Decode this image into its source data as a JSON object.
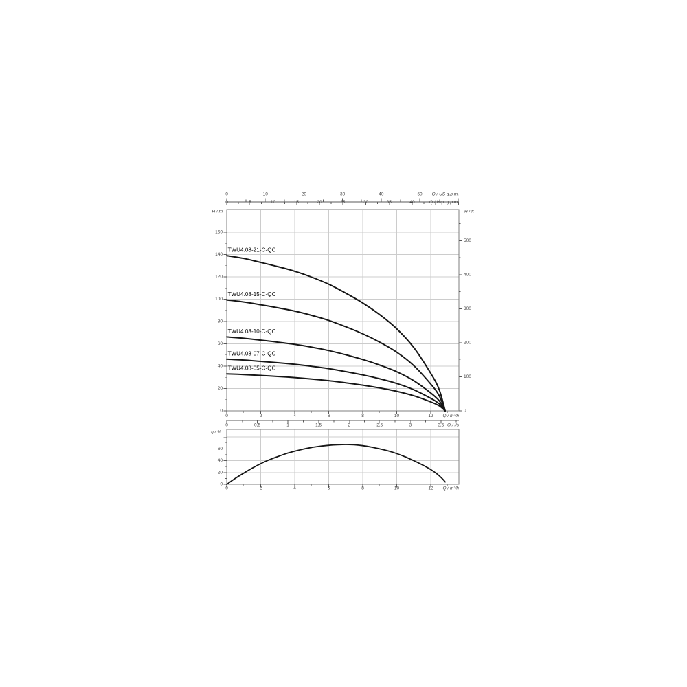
{
  "page": {
    "background": "#ffffff"
  },
  "colors": {
    "curve": "#161616",
    "grid": "#cccccc",
    "plot_border": "#7f7f7f",
    "tick": "#5a5a5a",
    "tick_text": "#404040",
    "curve_label_text": "#000000"
  },
  "chart_data": [
    {
      "id": "pump-head-curves",
      "type": "line",
      "grid": true,
      "axes": {
        "x_m3h": {
          "label": "Q / m³/h",
          "ticks": [
            0,
            2,
            4,
            6,
            8,
            10,
            12
          ],
          "tick_labels": [
            "0",
            "2",
            "4",
            "6",
            "8",
            "10",
            "12"
          ],
          "range": [
            0,
            13.66
          ]
        },
        "x_ls": {
          "label": "Q / l/s",
          "ticks": [
            0,
            0.5,
            1,
            1.5,
            2,
            2.5,
            3,
            3.5
          ],
          "tick_labels": [
            "0",
            "0,5",
            "1",
            "1,5",
            "2",
            "2,5",
            "3",
            "3,5"
          ],
          "range": [
            0,
            3.79
          ]
        },
        "x_usgpm": {
          "label": "Q / US g.p.m.",
          "ticks": [
            0,
            10,
            20,
            30,
            40,
            50
          ],
          "tick_labels": [
            "0",
            "10",
            "20",
            "30",
            "40",
            "50"
          ],
          "range": [
            0,
            60.1
          ]
        },
        "x_impgpm": {
          "label": "Q / Imp. g.p.m.",
          "ticks": [
            0,
            5,
            10,
            15,
            20,
            25,
            30,
            35,
            40
          ],
          "tick_labels": [
            "0",
            "5",
            "10",
            "15",
            "20",
            "25",
            "30",
            "35",
            "40"
          ],
          "range": [
            0,
            50.1
          ]
        },
        "y_m": {
          "label": "H / m",
          "ticks": [
            0,
            20,
            40,
            60,
            80,
            100,
            120,
            140,
            160
          ],
          "tick_labels": [
            "0",
            "20",
            "40",
            "60",
            "80",
            "100",
            "120",
            "140",
            "160"
          ],
          "range": [
            0,
            180
          ]
        },
        "y_ft": {
          "label": "H / ft",
          "ticks": [
            0,
            100,
            200,
            300,
            400,
            500
          ],
          "tick_labels": [
            "0",
            "100",
            "200",
            "300",
            "400",
            "500"
          ],
          "range": [
            0,
            591
          ]
        }
      },
      "series": [
        {
          "name": "TWU4.08-21-C-QC",
          "x": [
            0,
            1,
            2,
            3,
            4,
            5,
            6,
            7,
            8,
            9,
            10,
            11,
            12,
            12.5,
            12.85
          ],
          "y": [
            139,
            136.5,
            132.9,
            129.2,
            125,
            119.7,
            113.4,
            105.4,
            96.6,
            86.1,
            73.5,
            56.7,
            33.6,
            18.9,
            0
          ]
        },
        {
          "name": "TWU4.08-15-C-QC",
          "x": [
            0,
            1,
            2,
            3,
            4,
            5,
            6,
            7,
            8,
            9,
            10,
            11,
            12,
            12.5,
            12.85
          ],
          "y": [
            99.3,
            97.5,
            95,
            92.3,
            89.3,
            85.5,
            81,
            75.3,
            69,
            61.5,
            52.5,
            40.5,
            24,
            13.5,
            0
          ]
        },
        {
          "name": "TWU4.08-10-C-QC",
          "x": [
            0,
            1,
            2,
            3,
            4,
            5,
            6,
            7,
            8,
            9,
            10,
            11,
            12,
            12.5,
            12.85
          ],
          "y": [
            66.2,
            65,
            63.3,
            61.5,
            59.5,
            57,
            54,
            50.2,
            46,
            41,
            35,
            27,
            16,
            9,
            0
          ]
        },
        {
          "name": "TWU4.08-07-C-QC",
          "x": [
            0,
            1,
            2,
            3,
            4,
            5,
            6,
            7,
            8,
            9,
            10,
            11,
            12,
            12.5,
            12.85
          ],
          "y": [
            46.3,
            45.5,
            44.3,
            43.1,
            41.7,
            39.9,
            37.8,
            35.1,
            32.2,
            28.7,
            24.5,
            18.9,
            11.2,
            6.3,
            0
          ]
        },
        {
          "name": "TWU4.08-05-C-QC",
          "x": [
            0,
            1,
            2,
            3,
            4,
            5,
            6,
            7,
            8,
            9,
            10,
            11,
            12,
            12.5,
            12.85
          ],
          "y": [
            33.1,
            32.5,
            31.7,
            30.8,
            29.8,
            28.5,
            27,
            25.1,
            23,
            20.5,
            17.5,
            13.5,
            8,
            4.5,
            0
          ]
        }
      ]
    },
    {
      "id": "pump-efficiency-curve",
      "type": "line",
      "grid": true,
      "axes": {
        "x_m3h": {
          "label": "Q / m³/h",
          "ticks": [
            0,
            2,
            4,
            6,
            8,
            10,
            12
          ],
          "tick_labels": [
            "0",
            "2",
            "4",
            "6",
            "8",
            "10",
            "12"
          ],
          "range": [
            0,
            13.66
          ]
        },
        "y_pct": {
          "label": "η / %",
          "ticks": [
            0,
            20,
            40,
            60
          ],
          "tick_labels": [
            "0",
            "20",
            "40",
            "60"
          ],
          "range": [
            0,
            93
          ]
        }
      },
      "series": [
        {
          "name": "efficiency",
          "x": [
            0,
            0.5,
            1,
            1.5,
            2,
            2.5,
            3,
            3.5,
            4,
            4.5,
            5,
            5.5,
            6,
            6.5,
            7,
            7.5,
            8,
            8.5,
            9,
            9.5,
            10,
            10.5,
            11,
            11.5,
            12,
            12.4,
            12.7,
            12.85
          ],
          "y": [
            0,
            10,
            19,
            27.5,
            35,
            41.5,
            47,
            52,
            56,
            59.5,
            62.5,
            64.5,
            66,
            67,
            67.5,
            67,
            65.5,
            63,
            60,
            56.5,
            52,
            46.5,
            40,
            33,
            25,
            17,
            9,
            4
          ]
        }
      ]
    }
  ]
}
